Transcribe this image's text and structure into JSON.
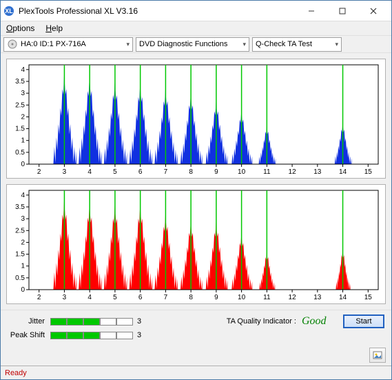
{
  "window": {
    "title": "PlexTools Professional XL V3.16"
  },
  "menu": {
    "options": "Options",
    "help": "Help"
  },
  "toolbar": {
    "drive": "HA:0 ID:1  PX-716A",
    "function": "DVD Diagnostic Functions",
    "test": "Q-Check TA Test",
    "drive_width": 188,
    "function_width": 165,
    "test_width": 130
  },
  "chart_common": {
    "bg": "#ffffff",
    "border": "#b0b0b0",
    "grid_color": "#f0f0f0",
    "vline_color": "#00c800",
    "vline_width": 1.5,
    "axis_color": "#000000",
    "tick_fontsize": 10,
    "xticks": [
      2,
      3,
      4,
      5,
      6,
      7,
      8,
      9,
      10,
      11,
      12,
      13,
      14,
      15
    ],
    "yticks": [
      0,
      0.5,
      1,
      1.5,
      2,
      2.5,
      3,
      3.5,
      4
    ],
    "xlim": [
      1.6,
      15.4
    ],
    "ylim": [
      0,
      4.2
    ],
    "margin": {
      "l": 32,
      "r": 10,
      "t": 8,
      "b": 20
    },
    "vline_x": [
      3,
      4,
      5,
      6,
      7,
      8,
      9,
      10,
      11,
      14
    ]
  },
  "chart_top": {
    "fill": "#1030e0",
    "peaks": [
      {
        "c": 3,
        "h": 3.7,
        "w": 0.95
      },
      {
        "c": 4,
        "h": 3.6,
        "w": 0.95
      },
      {
        "c": 5,
        "h": 3.4,
        "w": 0.95
      },
      {
        "c": 6,
        "h": 3.3,
        "w": 0.95
      },
      {
        "c": 7,
        "h": 3.1,
        "w": 0.95
      },
      {
        "c": 8,
        "h": 2.9,
        "w": 0.9
      },
      {
        "c": 9,
        "h": 2.6,
        "w": 0.9
      },
      {
        "c": 10,
        "h": 2.2,
        "w": 0.85
      },
      {
        "c": 11,
        "h": 1.6,
        "w": 0.7
      },
      {
        "c": 14,
        "h": 1.7,
        "w": 0.7
      }
    ]
  },
  "chart_bottom": {
    "fill": "#ff0000",
    "peaks": [
      {
        "c": 3,
        "h": 3.7,
        "w": 0.95
      },
      {
        "c": 4,
        "h": 3.55,
        "w": 0.95
      },
      {
        "c": 5,
        "h": 3.5,
        "w": 0.95
      },
      {
        "c": 6,
        "h": 3.5,
        "w": 0.95
      },
      {
        "c": 7,
        "h": 3.1,
        "w": 0.95
      },
      {
        "c": 8,
        "h": 2.8,
        "w": 0.9
      },
      {
        "c": 9,
        "h": 2.8,
        "w": 0.9
      },
      {
        "c": 10,
        "h": 2.3,
        "w": 0.85
      },
      {
        "c": 11,
        "h": 1.6,
        "w": 0.65
      },
      {
        "c": 14,
        "h": 1.7,
        "w": 0.6
      }
    ]
  },
  "metrics": {
    "jitter": {
      "label": "Jitter",
      "value": 3,
      "max": 5
    },
    "peakshift": {
      "label": "Peak Shift",
      "value": 3,
      "max": 5
    },
    "taq_label": "TA Quality Indicator :",
    "taq_value": "Good",
    "taq_color": "#008000"
  },
  "buttons": {
    "start": "Start"
  },
  "status": {
    "text": "Ready",
    "color": "#c00000"
  }
}
